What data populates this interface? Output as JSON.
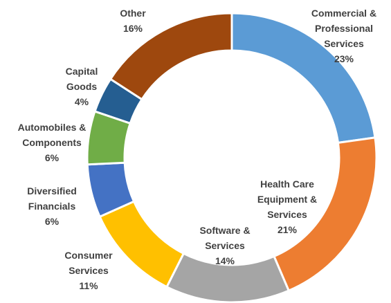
{
  "chart_data": {
    "type": "donut",
    "categories": [
      "Commercial & Professional Services",
      "Health Care Equipment & Services",
      "Software & Services",
      "Consumer Services",
      "Diversified Financials",
      "Automobiles & Components",
      "Capital Goods",
      "Other"
    ],
    "values": [
      23,
      21,
      14,
      11,
      6,
      6,
      4,
      16
    ],
    "value_labels": [
      "23%",
      "21%",
      "14%",
      "11%",
      "6%",
      "6%",
      "4%",
      "16%"
    ],
    "colors": [
      "#5b9bd5",
      "#ed7d31",
      "#a5a5a5",
      "#ffc000",
      "#4472c4",
      "#70ad47",
      "#255e91",
      "#9e480e"
    ]
  }
}
